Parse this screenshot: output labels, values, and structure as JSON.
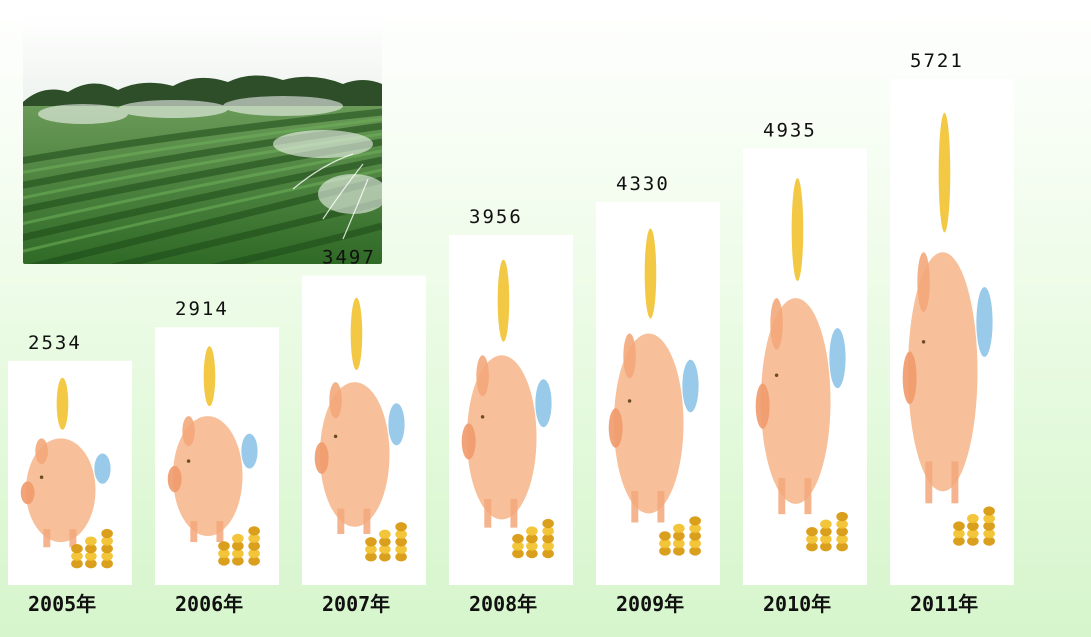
{
  "chart_data": {
    "type": "bar",
    "categories": [
      "2005年",
      "2006年",
      "2007年",
      "2008年",
      "2009年",
      "2010年",
      "2011年"
    ],
    "values": [
      2534,
      2914,
      3497,
      3956,
      4330,
      4935,
      5721
    ],
    "title": "",
    "xlabel": "",
    "ylabel": "",
    "ylim": [
      0,
      6500
    ],
    "grid": false,
    "legend": "none",
    "colors": {
      "card": "#ffffff",
      "pig": "#f6b98f",
      "coin": "#f2c230",
      "coin_dark": "#d89a10",
      "crystal": "#8ec4e8",
      "background": "#e2f9da"
    }
  },
  "photo": {
    "subject": "irrigated-crop-field-icon"
  }
}
